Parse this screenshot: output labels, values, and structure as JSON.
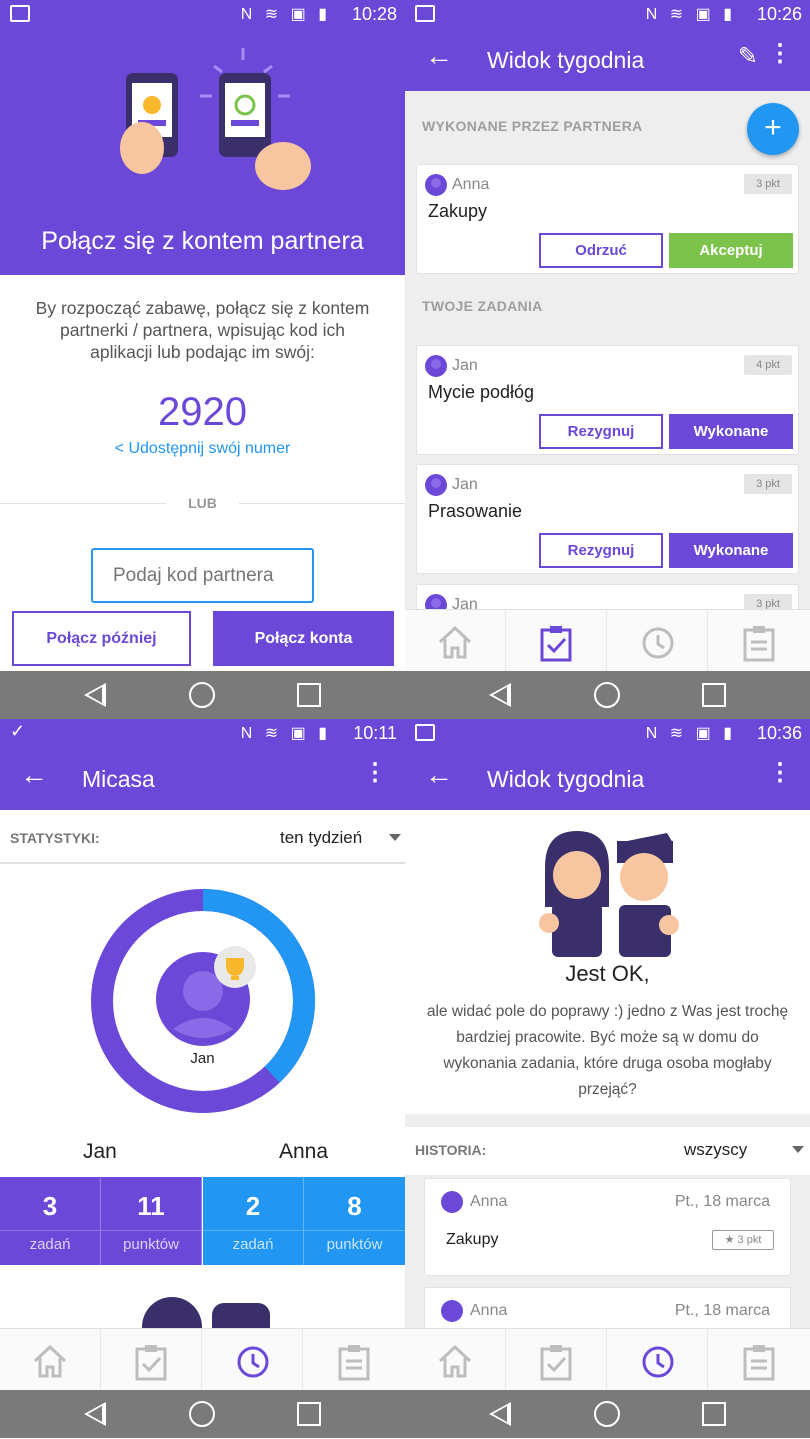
{
  "top_left": {
    "status_time": "10:28",
    "title": "Połącz się z kontem partnera",
    "description": "By rozpocząć zabawę, połącz się z kontem partnerki / partnera, wpisując kod ich aplikacji lub podając im swój:",
    "code": "2920",
    "share_label": "Udostępnij swój numer",
    "or_label": "LUB",
    "partner_code_placeholder": "Podaj kod partnera",
    "connect_later_label": "Połącz później",
    "connect_accounts_label": "Połącz konta"
  },
  "top_right": {
    "status_time": "10:26",
    "title": "Widok tygodnia",
    "section_partner": "WYKONANE PRZEZ PARTNERA",
    "section_yours": "TWOJE ZADANIA",
    "fab_label": "+",
    "tasks": [
      {
        "who": "Anna",
        "name": "Zakupy",
        "points": "3 pkt",
        "btn1": "Odrzuć",
        "btn2": "Akceptuj"
      },
      {
        "who": "Jan",
        "name": "Mycie podłóg",
        "points": "4 pkt",
        "btn1": "Rezygnuj",
        "btn2": "Wykonane"
      },
      {
        "who": "Jan",
        "name": "Prasowanie",
        "points": "3 pkt",
        "btn1": "Rezygnuj",
        "btn2": "Wykonane"
      },
      {
        "who": "Jan",
        "points": "3 pkt"
      }
    ]
  },
  "bottom_left": {
    "status_time": "10:11",
    "title": "Micasa",
    "stats_label": "STATYSTYKI:",
    "period": "ten tydzień",
    "leader_name": "Jan",
    "jan_share": 0.62,
    "player1": "Jan",
    "player2": "Anna",
    "stats": [
      {
        "num": "3",
        "label": "zadań"
      },
      {
        "num": "11",
        "label": "punktów"
      },
      {
        "num": "2",
        "label": "zadań"
      },
      {
        "num": "8",
        "label": "punktów"
      }
    ]
  },
  "bottom_right": {
    "status_time": "10:36",
    "title": "Widok tygodnia",
    "heading": "Jest OK,",
    "description": "ale widać pole do poprawy :) jedno z Was jest trochę bardziej pracowite. Być może są w domu do wykonania zadania, które druga osoba mogłaby przejąć?",
    "history_label": "HISTORIA:",
    "history_filter": "wszyscy",
    "history": [
      {
        "who": "Anna",
        "date": "Pt., 18 marca",
        "name": "Zakupy",
        "points": "3 pkt"
      },
      {
        "who": "Anna",
        "date": "Pt., 18 marca"
      }
    ]
  },
  "colors": {
    "primary": "#6c48d8",
    "accent": "#2196f3",
    "success": "#7bc34a"
  }
}
